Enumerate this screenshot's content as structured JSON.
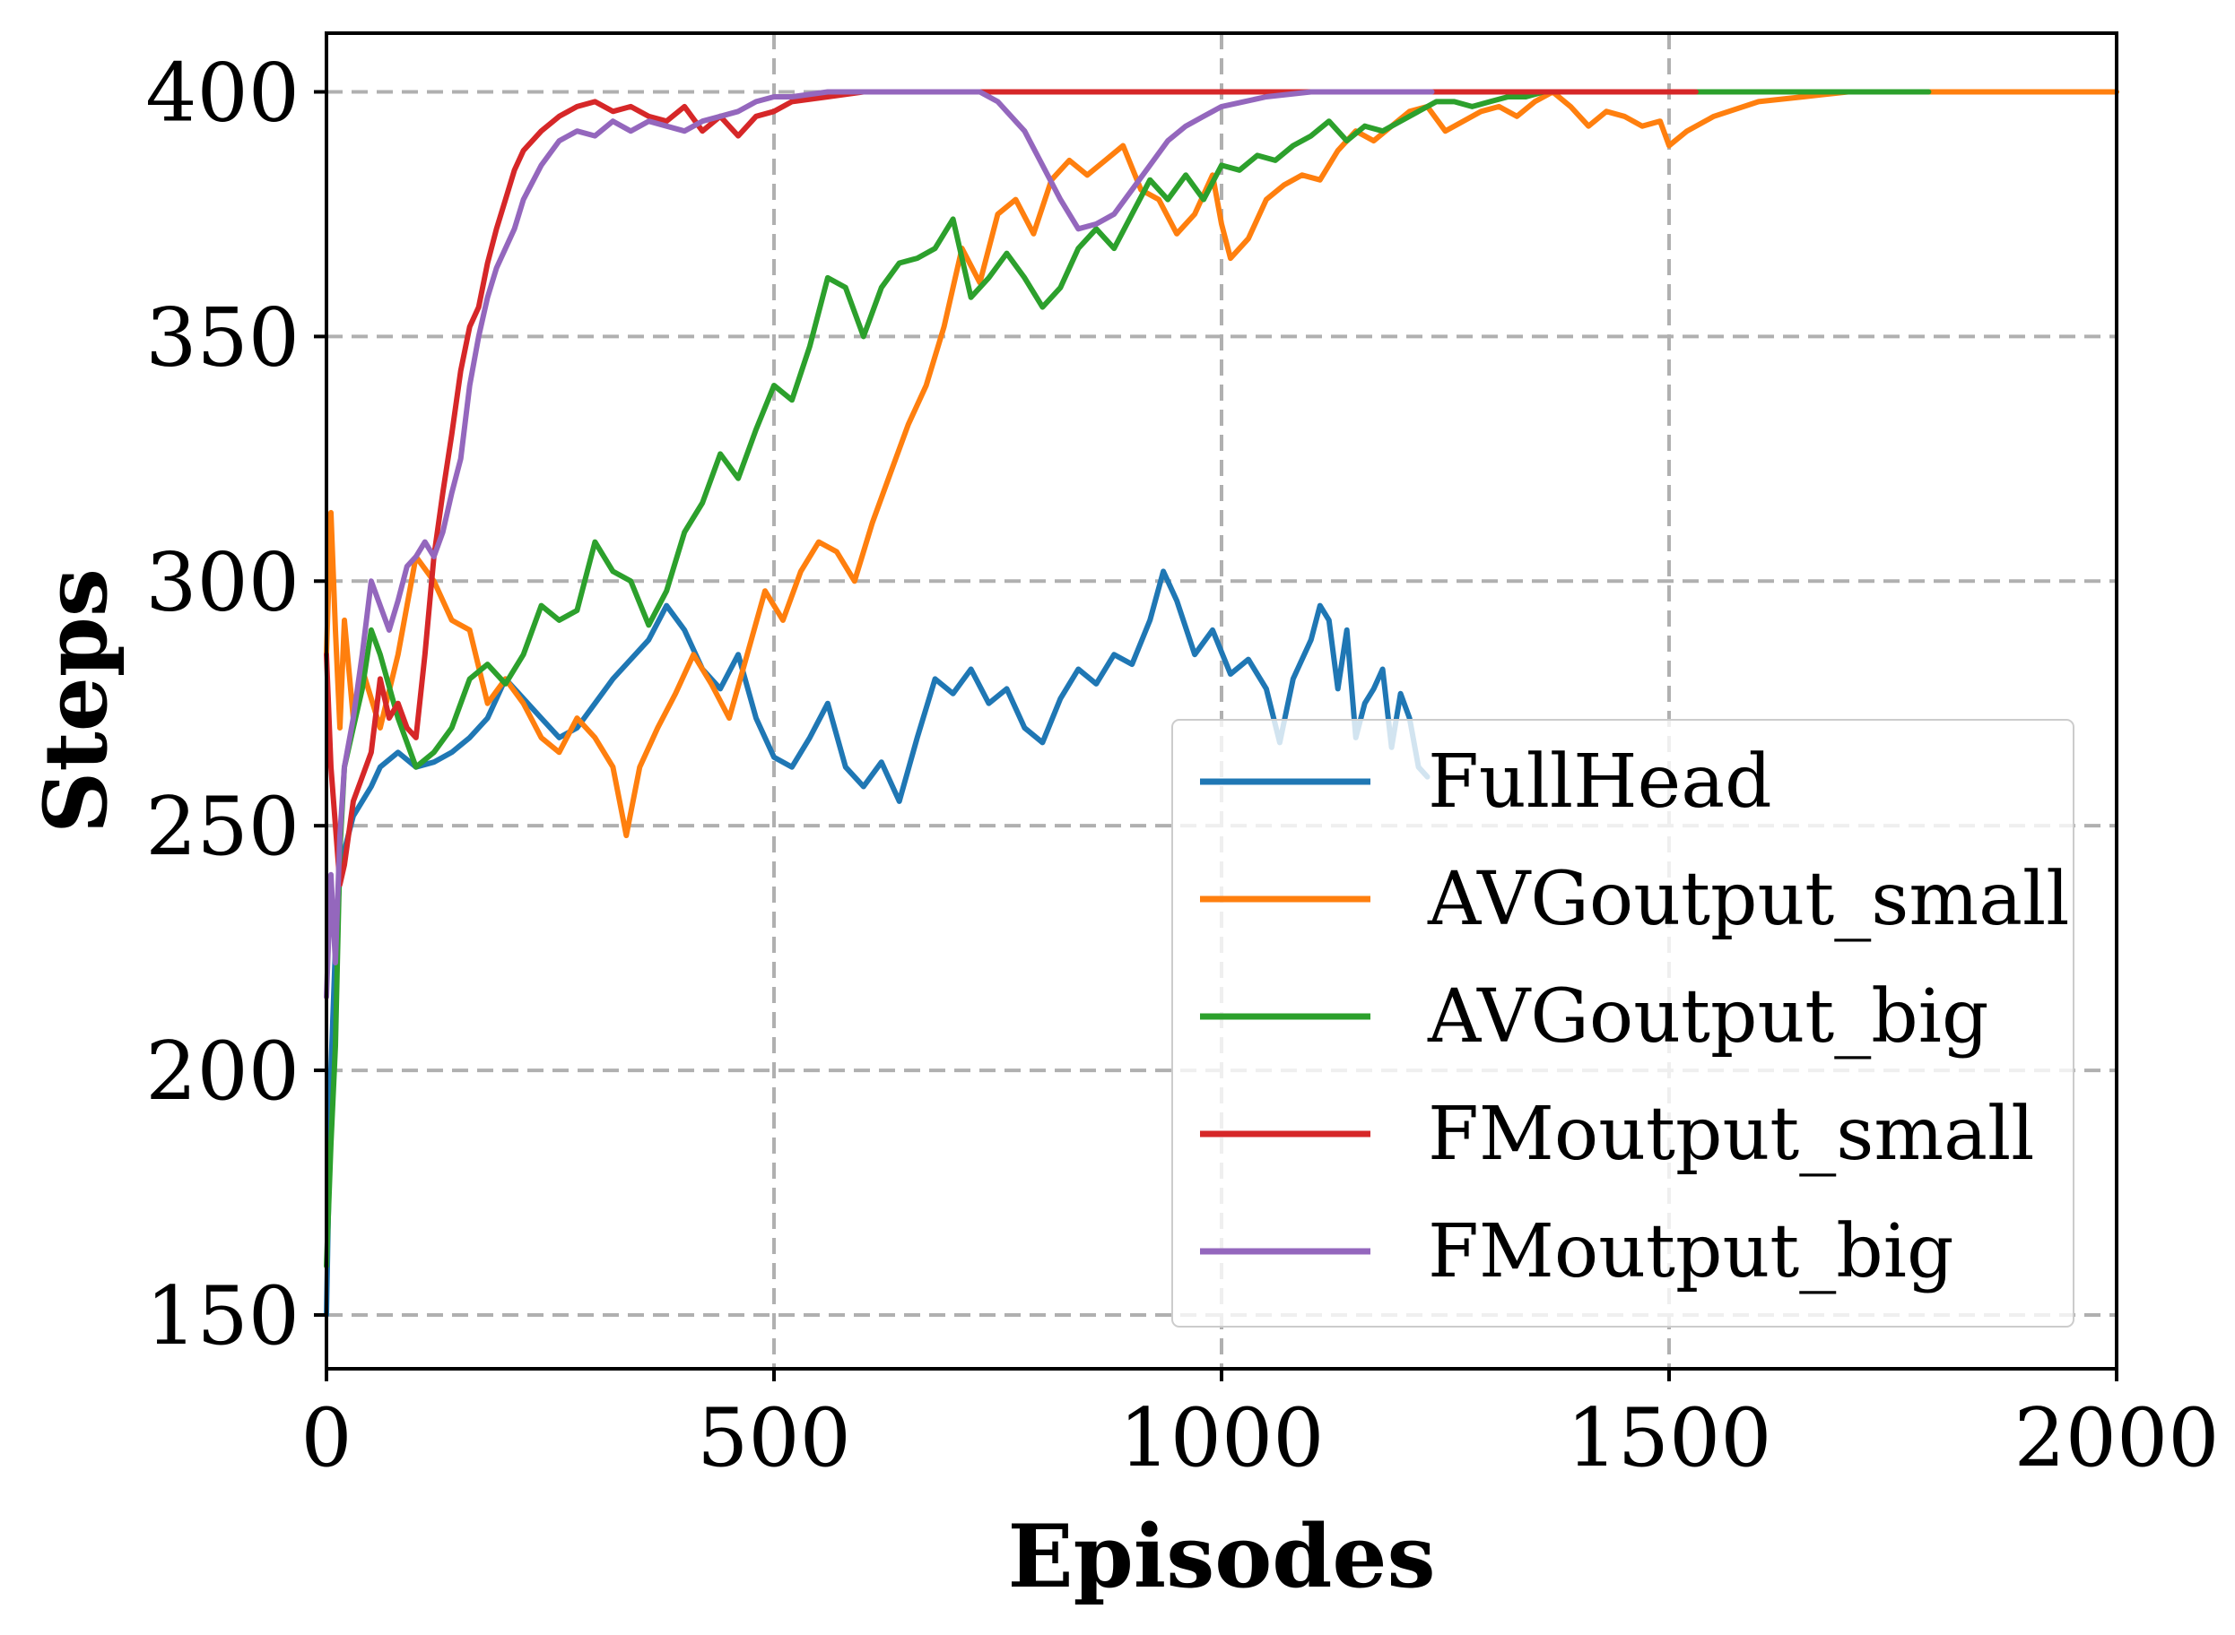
{
  "chart_data": {
    "type": "line",
    "title": "",
    "xlabel": "Episodes",
    "ylabel": "Steps",
    "xlim": [
      0,
      2000
    ],
    "ylim": [
      139,
      412
    ],
    "xticks": [
      0,
      500,
      1000,
      1500,
      2000
    ],
    "yticks": [
      150,
      200,
      250,
      300,
      350,
      400
    ],
    "xtick_labels": [
      "0",
      "500",
      "1000",
      "1500",
      "2000"
    ],
    "ytick_labels": [
      "150",
      "200",
      "250",
      "300",
      "350",
      "400"
    ],
    "grid": true,
    "legend_position": "lower-right",
    "series": [
      {
        "name": "FullHead",
        "color": "#1f77b4",
        "x": [
          0,
          5,
          10,
          15,
          20,
          30,
          40,
          50,
          60,
          80,
          100,
          120,
          140,
          160,
          180,
          200,
          220,
          240,
          260,
          280,
          300,
          320,
          340,
          360,
          380,
          400,
          420,
          440,
          460,
          480,
          500,
          520,
          540,
          560,
          580,
          600,
          620,
          640,
          660,
          680,
          700,
          720,
          740,
          760,
          780,
          800,
          820,
          840,
          860,
          880,
          900,
          920,
          935,
          950,
          970,
          990,
          1010,
          1030,
          1050,
          1065,
          1080,
          1100,
          1110,
          1120,
          1130,
          1140,
          1150,
          1160,
          1170,
          1180,
          1190,
          1200,
          1210,
          1220,
          1230
        ],
        "y": [
          150,
          200,
          225,
          240,
          245,
          252,
          255,
          258,
          262,
          265,
          262,
          263,
          265,
          268,
          272,
          280,
          276,
          272,
          268,
          270,
          275,
          280,
          284,
          288,
          295,
          290,
          282,
          278,
          285,
          272,
          264,
          262,
          268,
          275,
          262,
          258,
          263,
          255,
          268,
          280,
          277,
          282,
          275,
          278,
          270,
          267,
          276,
          282,
          279,
          285,
          283,
          292,
          302,
          296,
          285,
          290,
          281,
          284,
          278,
          267,
          280,
          288,
          295,
          292,
          278,
          290,
          268,
          275,
          278,
          282,
          266,
          277,
          272,
          262,
          260
        ]
      },
      {
        "name": "AVGoutput_small",
        "color": "#ff7f0e",
        "x": [
          0,
          5,
          10,
          15,
          20,
          30,
          40,
          60,
          80,
          100,
          120,
          140,
          160,
          180,
          200,
          220,
          240,
          260,
          280,
          300,
          320,
          335,
          350,
          370,
          390,
          410,
          430,
          450,
          470,
          490,
          510,
          530,
          550,
          570,
          590,
          610,
          630,
          650,
          670,
          690,
          710,
          730,
          750,
          770,
          790,
          810,
          830,
          850,
          870,
          890,
          910,
          930,
          950,
          970,
          990,
          1000,
          1010,
          1030,
          1050,
          1070,
          1090,
          1110,
          1130,
          1150,
          1170,
          1190,
          1210,
          1230,
          1250,
          1270,
          1290,
          1310,
          1330,
          1350,
          1370,
          1390,
          1410,
          1430,
          1450,
          1470,
          1490,
          1500,
          1520,
          1550,
          1600,
          1650,
          1700,
          1800,
          1900,
          2000
        ],
        "y": [
          285,
          314,
          290,
          270,
          292,
          272,
          282,
          270,
          285,
          305,
          300,
          292,
          290,
          275,
          280,
          275,
          268,
          265,
          272,
          268,
          262,
          248,
          262,
          270,
          277,
          285,
          279,
          272,
          285,
          298,
          292,
          302,
          308,
          306,
          300,
          312,
          322,
          332,
          340,
          352,
          368,
          361,
          375,
          378,
          371,
          382,
          386,
          383,
          386,
          389,
          380,
          378,
          371,
          375,
          383,
          373,
          366,
          370,
          378,
          381,
          383,
          382,
          388,
          392,
          390,
          393,
          396,
          397,
          392,
          394,
          396,
          397,
          395,
          398,
          400,
          397,
          393,
          396,
          395,
          393,
          394,
          389,
          392,
          395,
          398,
          399,
          400,
          400,
          400,
          400
        ]
      },
      {
        "name": "AVGoutput_big",
        "color": "#2ca02c",
        "x": [
          0,
          5,
          10,
          15,
          20,
          30,
          40,
          50,
          60,
          80,
          100,
          120,
          140,
          160,
          180,
          200,
          220,
          240,
          260,
          280,
          300,
          320,
          340,
          360,
          380,
          400,
          420,
          440,
          460,
          480,
          500,
          520,
          540,
          560,
          580,
          600,
          620,
          640,
          660,
          680,
          700,
          720,
          740,
          760,
          780,
          800,
          820,
          840,
          860,
          880,
          900,
          920,
          940,
          960,
          980,
          1000,
          1020,
          1040,
          1060,
          1080,
          1100,
          1120,
          1140,
          1160,
          1180,
          1200,
          1220,
          1240,
          1260,
          1280,
          1300,
          1320,
          1340,
          1360,
          1380,
          1400,
          1500,
          1600,
          1700,
          1790
        ],
        "y": [
          160,
          185,
          205,
          245,
          262,
          270,
          278,
          290,
          285,
          272,
          262,
          265,
          270,
          280,
          283,
          279,
          285,
          295,
          292,
          294,
          308,
          302,
          300,
          291,
          298,
          310,
          316,
          326,
          321,
          331,
          340,
          337,
          348,
          362,
          360,
          350,
          360,
          365,
          366,
          368,
          374,
          358,
          362,
          367,
          362,
          356,
          360,
          368,
          372,
          368,
          375,
          382,
          378,
          383,
          378,
          385,
          384,
          387,
          386,
          389,
          391,
          394,
          390,
          393,
          392,
          394,
          396,
          398,
          398,
          397,
          398,
          399,
          399,
          400,
          400,
          400,
          400,
          400,
          400,
          400
        ]
      },
      {
        "name": "FMoutput_small",
        "color": "#d62728",
        "x": [
          0,
          5,
          10,
          15,
          20,
          30,
          40,
          50,
          60,
          70,
          80,
          90,
          100,
          110,
          120,
          130,
          140,
          150,
          160,
          170,
          180,
          190,
          200,
          210,
          220,
          240,
          260,
          280,
          300,
          320,
          340,
          360,
          380,
          400,
          420,
          440,
          460,
          480,
          500,
          520,
          560,
          600,
          700,
          800,
          900,
          1000,
          1200,
          1400,
          1530
        ],
        "y": [
          285,
          262,
          250,
          238,
          242,
          255,
          260,
          265,
          280,
          272,
          275,
          270,
          268,
          285,
          305,
          318,
          330,
          343,
          352,
          356,
          365,
          372,
          378,
          384,
          388,
          392,
          395,
          397,
          398,
          396,
          397,
          395,
          394,
          397,
          392,
          395,
          391,
          395,
          396,
          398,
          399,
          400,
          400,
          400,
          400,
          400,
          400,
          400,
          400
        ]
      },
      {
        "name": "FMoutput_big",
        "color": "#9467bd",
        "x": [
          0,
          5,
          10,
          15,
          20,
          30,
          40,
          50,
          60,
          70,
          80,
          90,
          100,
          110,
          120,
          130,
          140,
          150,
          160,
          170,
          180,
          190,
          200,
          210,
          220,
          240,
          260,
          280,
          300,
          320,
          340,
          360,
          380,
          400,
          420,
          440,
          460,
          480,
          500,
          520,
          560,
          600,
          650,
          700,
          730,
          750,
          780,
          800,
          820,
          840,
          860,
          880,
          900,
          920,
          940,
          960,
          980,
          1000,
          1050,
          1100,
          1150,
          1200,
          1235
        ],
        "y": [
          215,
          240,
          222,
          248,
          262,
          272,
          285,
          300,
          295,
          290,
          296,
          303,
          305,
          308,
          305,
          310,
          318,
          325,
          340,
          350,
          358,
          364,
          368,
          372,
          378,
          385,
          390,
          392,
          391,
          394,
          392,
          394,
          393,
          392,
          394,
          395,
          396,
          398,
          399,
          399,
          400,
          400,
          400,
          400,
          400,
          398,
          392,
          385,
          378,
          372,
          373,
          375,
          380,
          385,
          390,
          393,
          395,
          397,
          399,
          400,
          400,
          400,
          400
        ]
      }
    ]
  }
}
